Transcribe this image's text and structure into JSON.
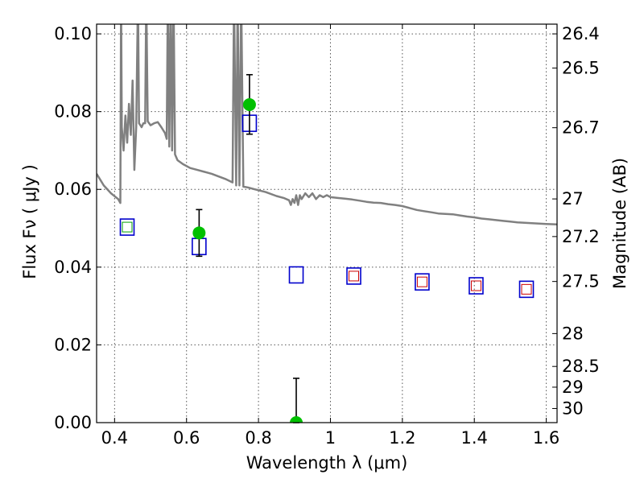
{
  "chart_data": {
    "type": "scatter",
    "xlabel": "Wavelength  λ (μm)",
    "ylabel": "Flux  Fν  ( μJy )",
    "ylabel_right": "Magnitude (AB)",
    "xlim": [
      0.35,
      1.63
    ],
    "ylim": [
      0.0,
      0.1025
    ],
    "grid": true,
    "x_ticks": [
      0.4,
      0.6,
      0.8,
      1.0,
      1.2,
      1.4,
      1.6
    ],
    "x_tick_labels": [
      "0.4",
      "0.6",
      "0.8",
      "1",
      "1.2",
      "1.4",
      "1.6"
    ],
    "y_ticks": [
      0.0,
      0.02,
      0.04,
      0.06,
      0.08,
      0.1
    ],
    "y_tick_labels": [
      "0.00",
      "0.02",
      "0.04",
      "0.06",
      "0.08",
      "0.10"
    ],
    "right_ticks": [
      "26.4",
      "26.5",
      "26.7",
      "27",
      "27.2",
      "27.5",
      "28",
      "28.5",
      "29",
      "30"
    ],
    "colors": {
      "spectrum": "#808080",
      "observed": "#00c000",
      "model_box": "#0000cc",
      "inner_green": "#00a000",
      "inner_red": "#cc0000",
      "errorbar": "#000000"
    },
    "spectrum": [
      [
        0.35,
        0.064
      ],
      [
        0.37,
        0.061
      ],
      [
        0.39,
        0.059
      ],
      [
        0.41,
        0.0575
      ],
      [
        0.416,
        0.0565
      ],
      [
        0.418,
        0.11
      ],
      [
        0.42,
        0.076
      ],
      [
        0.425,
        0.07
      ],
      [
        0.43,
        0.079
      ],
      [
        0.435,
        0.072
      ],
      [
        0.44,
        0.082
      ],
      [
        0.445,
        0.074
      ],
      [
        0.45,
        0.088
      ],
      [
        0.455,
        0.065
      ],
      [
        0.46,
        0.076
      ],
      [
        0.465,
        0.11
      ],
      [
        0.468,
        0.077
      ],
      [
        0.475,
        0.076
      ],
      [
        0.48,
        0.077
      ],
      [
        0.485,
        0.077
      ],
      [
        0.488,
        0.11
      ],
      [
        0.492,
        0.0775
      ],
      [
        0.5,
        0.0765
      ],
      [
        0.51,
        0.077
      ],
      [
        0.52,
        0.0773
      ],
      [
        0.53,
        0.076
      ],
      [
        0.54,
        0.0745
      ],
      [
        0.545,
        0.073
      ],
      [
        0.548,
        0.11
      ],
      [
        0.552,
        0.071
      ],
      [
        0.556,
        0.11
      ],
      [
        0.56,
        0.07
      ],
      [
        0.564,
        0.11
      ],
      [
        0.568,
        0.069
      ],
      [
        0.575,
        0.0675
      ],
      [
        0.59,
        0.0665
      ],
      [
        0.61,
        0.0655
      ],
      [
        0.63,
        0.065
      ],
      [
        0.65,
        0.0645
      ],
      [
        0.67,
        0.064
      ],
      [
        0.69,
        0.0633
      ],
      [
        0.71,
        0.0626
      ],
      [
        0.728,
        0.0618
      ],
      [
        0.732,
        0.11
      ],
      [
        0.738,
        0.061
      ],
      [
        0.742,
        0.11
      ],
      [
        0.747,
        0.061
      ],
      [
        0.752,
        0.11
      ],
      [
        0.758,
        0.0607
      ],
      [
        0.77,
        0.0605
      ],
      [
        0.79,
        0.06
      ],
      [
        0.82,
        0.0593
      ],
      [
        0.85,
        0.0583
      ],
      [
        0.87,
        0.0578
      ],
      [
        0.885,
        0.0572
      ],
      [
        0.89,
        0.056
      ],
      [
        0.895,
        0.0575
      ],
      [
        0.9,
        0.0565
      ],
      [
        0.905,
        0.0585
      ],
      [
        0.91,
        0.056
      ],
      [
        0.915,
        0.0585
      ],
      [
        0.92,
        0.0575
      ],
      [
        0.93,
        0.059
      ],
      [
        0.94,
        0.058
      ],
      [
        0.95,
        0.059
      ],
      [
        0.96,
        0.0575
      ],
      [
        0.97,
        0.0585
      ],
      [
        0.98,
        0.058
      ],
      [
        0.99,
        0.0585
      ],
      [
        1.0,
        0.058
      ],
      [
        1.02,
        0.0578
      ],
      [
        1.04,
        0.0576
      ],
      [
        1.06,
        0.0574
      ],
      [
        1.08,
        0.0571
      ],
      [
        1.1,
        0.0568
      ],
      [
        1.12,
        0.0566
      ],
      [
        1.14,
        0.0565
      ],
      [
        1.16,
        0.0562
      ],
      [
        1.18,
        0.056
      ],
      [
        1.2,
        0.0557
      ],
      [
        1.22,
        0.0552
      ],
      [
        1.24,
        0.0547
      ],
      [
        1.26,
        0.0544
      ],
      [
        1.28,
        0.0541
      ],
      [
        1.3,
        0.0538
      ],
      [
        1.32,
        0.0537
      ],
      [
        1.34,
        0.0536
      ],
      [
        1.36,
        0.0533
      ],
      [
        1.38,
        0.053
      ],
      [
        1.4,
        0.0528
      ],
      [
        1.42,
        0.0525
      ],
      [
        1.44,
        0.0523
      ],
      [
        1.46,
        0.0521
      ],
      [
        1.48,
        0.0519
      ],
      [
        1.5,
        0.0517
      ],
      [
        1.52,
        0.0515
      ],
      [
        1.54,
        0.0514
      ],
      [
        1.56,
        0.0513
      ],
      [
        1.58,
        0.0512
      ],
      [
        1.6,
        0.0511
      ],
      [
        1.63,
        0.051
      ]
    ],
    "observed": [
      {
        "x": 0.635,
        "y": 0.0488,
        "err_lo": 0.0428,
        "err_hi": 0.0548
      },
      {
        "x": 0.775,
        "y": 0.0818,
        "err_lo": 0.0742,
        "err_hi": 0.0895
      },
      {
        "x": 0.905,
        "y": 0.0,
        "err_lo": 0.0,
        "err_hi": 0.0114
      }
    ],
    "model_boxes": [
      {
        "x": 0.435,
        "y": 0.0503,
        "inner": "green"
      },
      {
        "x": 0.635,
        "y": 0.0453,
        "inner": "none"
      },
      {
        "x": 0.775,
        "y": 0.077,
        "inner": "none"
      },
      {
        "x": 0.905,
        "y": 0.038,
        "inner": "none"
      },
      {
        "x": 1.065,
        "y": 0.0377,
        "inner": "red"
      },
      {
        "x": 1.255,
        "y": 0.0362,
        "inner": "red"
      },
      {
        "x": 1.405,
        "y": 0.0352,
        "inner": "red"
      },
      {
        "x": 1.545,
        "y": 0.0343,
        "inner": "red"
      }
    ]
  }
}
